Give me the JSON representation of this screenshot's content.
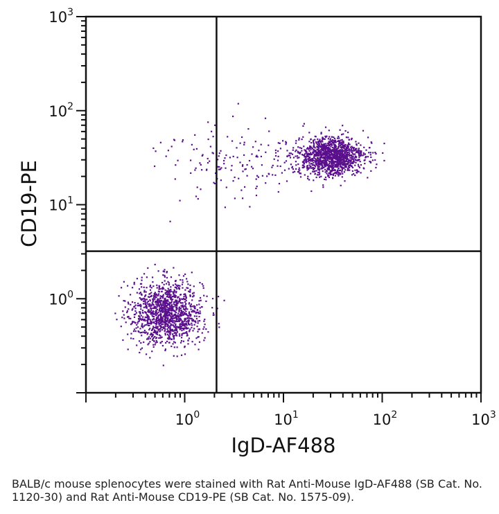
{
  "chart_data": {
    "type": "scatter",
    "xlabel": "IgD-AF488",
    "ylabel": "CD19-PE",
    "x_scale": "log",
    "y_scale": "log",
    "xlim": [
      0.1,
      1000
    ],
    "ylim": [
      0.1,
      1000
    ],
    "x_ticks": [
      {
        "base": "10",
        "exp": "0"
      },
      {
        "base": "10",
        "exp": "1"
      },
      {
        "base": "10",
        "exp": "2"
      },
      {
        "base": "10",
        "exp": "3"
      }
    ],
    "y_ticks": [
      {
        "base": "10",
        "exp": "0"
      },
      {
        "base": "10",
        "exp": "1"
      },
      {
        "base": "10",
        "exp": "2"
      },
      {
        "base": "10",
        "exp": "3"
      }
    ],
    "quadrant_gates": {
      "x": 2.1,
      "y": 3.2
    },
    "point_color": "#5a0f8c",
    "populations": [
      {
        "center": [
          0.65,
          0.72
        ],
        "count": 1300
      },
      {
        "center": [
          30,
          33
        ],
        "count": 1300
      },
      {
        "center": [
          3,
          30
        ],
        "count": 160
      }
    ]
  },
  "caption": "BALB/c mouse splenocytes were stained with Rat Anti-Mouse IgD-AF488 (SB Cat. No. 1120-30) and Rat Anti-Mouse CD19-PE (SB Cat. No. 1575-09)."
}
